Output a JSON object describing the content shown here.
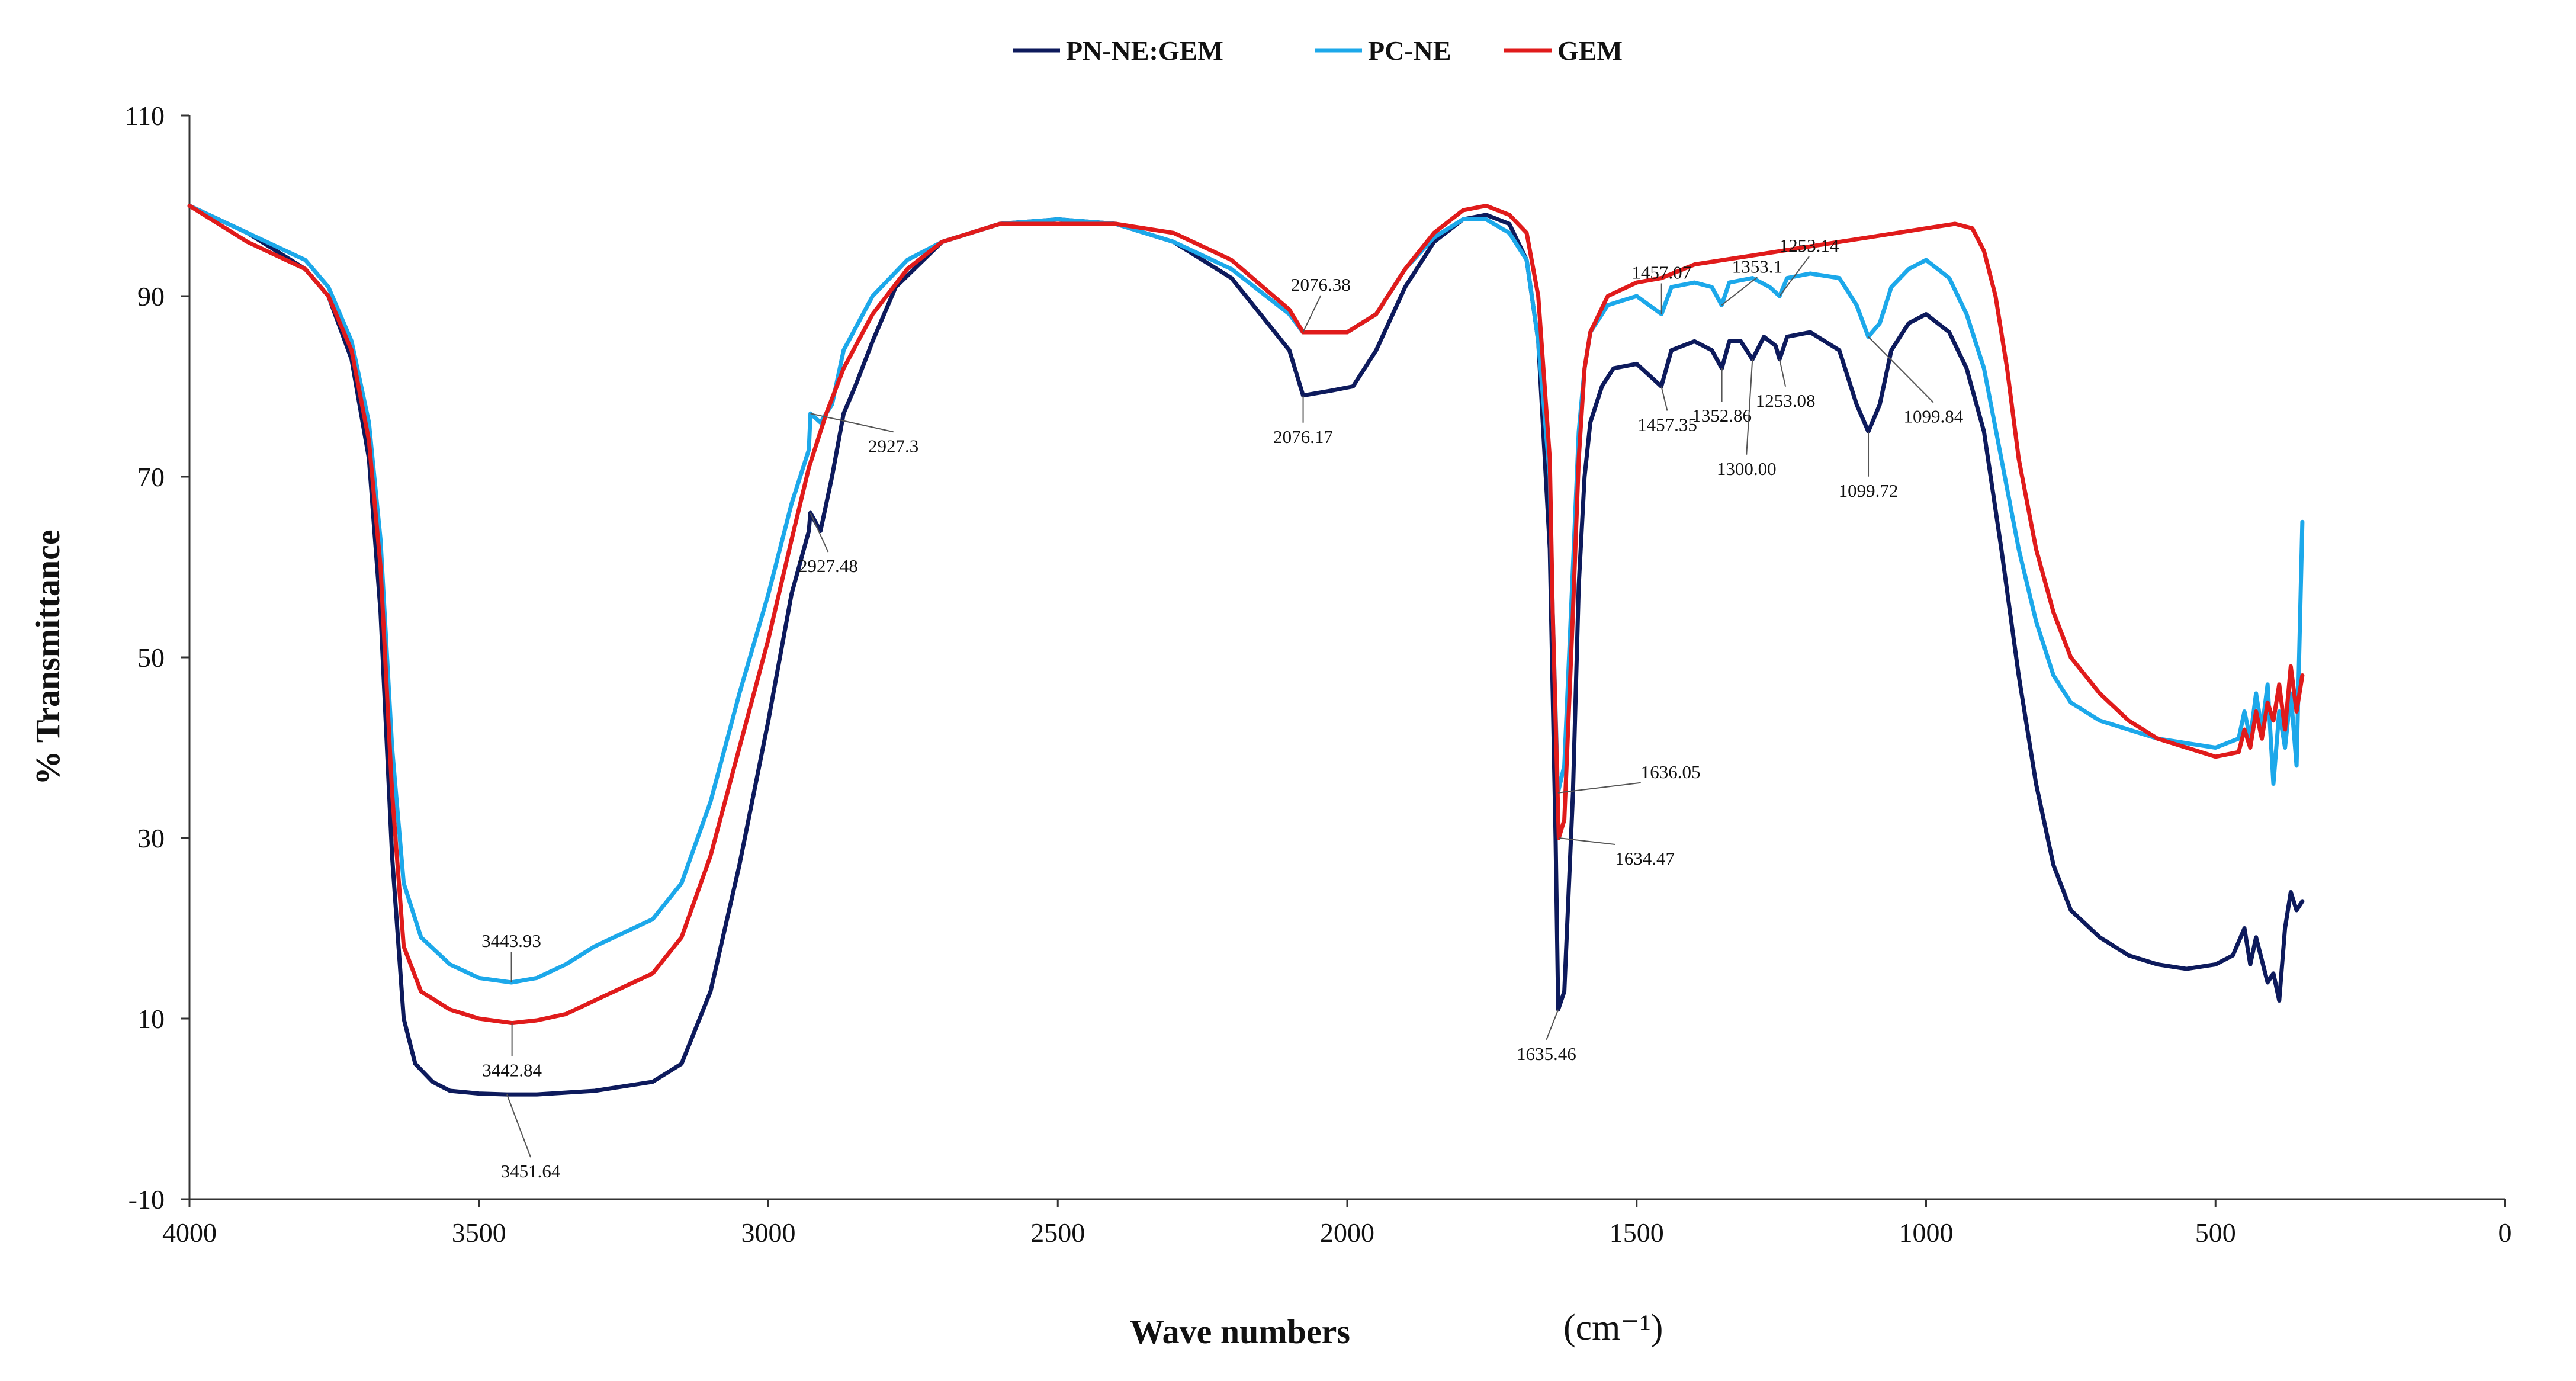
{
  "chart_data": {
    "type": "line",
    "title": "",
    "xlabel": "Wave numbers",
    "xlabel_unit": "(cm⁻¹)",
    "ylabel": "% Transmittance",
    "xlim": [
      4000,
      0
    ],
    "ylim": [
      -10,
      110
    ],
    "x_reversed": true,
    "grid": false,
    "legend_position": "top-center",
    "xticks": [
      4000,
      3500,
      3000,
      2500,
      2000,
      1500,
      1000,
      500,
      0
    ],
    "yticks": [
      -10,
      10,
      30,
      50,
      70,
      90,
      110
    ],
    "series": [
      {
        "name": "PN-NE:GEM",
        "color": "#0d1a5c",
        "points": [
          [
            4000,
            100
          ],
          [
            3900,
            97
          ],
          [
            3800,
            93
          ],
          [
            3760,
            90
          ],
          [
            3720,
            83
          ],
          [
            3690,
            72
          ],
          [
            3670,
            55
          ],
          [
            3650,
            28
          ],
          [
            3630,
            10
          ],
          [
            3610,
            5
          ],
          [
            3580,
            3
          ],
          [
            3550,
            2
          ],
          [
            3500,
            1.7
          ],
          [
            3451.64,
            1.6
          ],
          [
            3400,
            1.6
          ],
          [
            3300,
            2
          ],
          [
            3200,
            3
          ],
          [
            3150,
            5
          ],
          [
            3100,
            13
          ],
          [
            3050,
            27
          ],
          [
            3000,
            43
          ],
          [
            2960,
            57
          ],
          [
            2930,
            64
          ],
          [
            2927.48,
            66
          ],
          [
            2910,
            64
          ],
          [
            2890,
            70
          ],
          [
            2870,
            77
          ],
          [
            2850,
            80
          ],
          [
            2820,
            85
          ],
          [
            2780,
            91
          ],
          [
            2700,
            96
          ],
          [
            2600,
            98
          ],
          [
            2500,
            98.5
          ],
          [
            2400,
            98
          ],
          [
            2300,
            96
          ],
          [
            2200,
            92
          ],
          [
            2100,
            84
          ],
          [
            2076.17,
            79
          ],
          [
            2030,
            79.5
          ],
          [
            1990,
            80
          ],
          [
            1950,
            84
          ],
          [
            1900,
            91
          ],
          [
            1850,
            96
          ],
          [
            1800,
            98.5
          ],
          [
            1760,
            99
          ],
          [
            1720,
            98
          ],
          [
            1690,
            94
          ],
          [
            1670,
            85
          ],
          [
            1650,
            62
          ],
          [
            1640,
            30
          ],
          [
            1635.46,
            11
          ],
          [
            1625,
            13
          ],
          [
            1610,
            35
          ],
          [
            1600,
            58
          ],
          [
            1590,
            70
          ],
          [
            1580,
            76
          ],
          [
            1560,
            80
          ],
          [
            1540,
            82
          ],
          [
            1500,
            82.5
          ],
          [
            1457.35,
            80
          ],
          [
            1440,
            84
          ],
          [
            1400,
            85
          ],
          [
            1370,
            84
          ],
          [
            1352.86,
            82
          ],
          [
            1340,
            85
          ],
          [
            1320,
            85
          ],
          [
            1300,
            83
          ],
          [
            1280,
            85.5
          ],
          [
            1260,
            84.5
          ],
          [
            1253.08,
            83
          ],
          [
            1240,
            85.5
          ],
          [
            1200,
            86
          ],
          [
            1150,
            84
          ],
          [
            1120,
            78
          ],
          [
            1099.72,
            75
          ],
          [
            1080,
            78
          ],
          [
            1060,
            84
          ],
          [
            1030,
            87
          ],
          [
            1000,
            88
          ],
          [
            960,
            86
          ],
          [
            930,
            82
          ],
          [
            900,
            75
          ],
          [
            870,
            62
          ],
          [
            840,
            48
          ],
          [
            810,
            36
          ],
          [
            780,
            27
          ],
          [
            750,
            22
          ],
          [
            700,
            19
          ],
          [
            650,
            17
          ],
          [
            600,
            16
          ],
          [
            550,
            15.5
          ],
          [
            500,
            16
          ],
          [
            470,
            17
          ],
          [
            450,
            20
          ],
          [
            440,
            16
          ],
          [
            430,
            19
          ],
          [
            410,
            14
          ],
          [
            400,
            15
          ],
          [
            390,
            12
          ],
          [
            380,
            20
          ],
          [
            370,
            24
          ],
          [
            360,
            22
          ],
          [
            350,
            23
          ]
        ]
      },
      {
        "name": "PC-NE",
        "color": "#1ca8ea",
        "points": [
          [
            4000,
            100
          ],
          [
            3900,
            97
          ],
          [
            3800,
            94
          ],
          [
            3760,
            91
          ],
          [
            3720,
            85
          ],
          [
            3690,
            76
          ],
          [
            3670,
            63
          ],
          [
            3650,
            40
          ],
          [
            3630,
            25
          ],
          [
            3600,
            19
          ],
          [
            3550,
            16
          ],
          [
            3500,
            14.5
          ],
          [
            3443.93,
            14
          ],
          [
            3400,
            14.5
          ],
          [
            3350,
            16
          ],
          [
            3300,
            18
          ],
          [
            3200,
            21
          ],
          [
            3150,
            25
          ],
          [
            3100,
            34
          ],
          [
            3050,
            46
          ],
          [
            3000,
            57
          ],
          [
            2960,
            67
          ],
          [
            2930,
            73
          ],
          [
            2927.3,
            77
          ],
          [
            2910,
            76
          ],
          [
            2890,
            78
          ],
          [
            2870,
            84
          ],
          [
            2820,
            90
          ],
          [
            2760,
            94
          ],
          [
            2700,
            96
          ],
          [
            2600,
            98
          ],
          [
            2500,
            98.5
          ],
          [
            2400,
            98
          ],
          [
            2300,
            96
          ],
          [
            2200,
            93
          ],
          [
            2100,
            88
          ],
          [
            2076.38,
            86
          ],
          [
            2000,
            86
          ],
          [
            1950,
            88
          ],
          [
            1900,
            93
          ],
          [
            1850,
            96.5
          ],
          [
            1800,
            98.5
          ],
          [
            1760,
            98.5
          ],
          [
            1720,
            97
          ],
          [
            1690,
            94
          ],
          [
            1670,
            85
          ],
          [
            1650,
            70
          ],
          [
            1645,
            55
          ],
          [
            1636.05,
            35
          ],
          [
            1625,
            38
          ],
          [
            1610,
            60
          ],
          [
            1600,
            75
          ],
          [
            1590,
            82
          ],
          [
            1580,
            86
          ],
          [
            1550,
            89
          ],
          [
            1500,
            90
          ],
          [
            1457.07,
            88
          ],
          [
            1440,
            91
          ],
          [
            1400,
            91.5
          ],
          [
            1370,
            91
          ],
          [
            1353.1,
            89
          ],
          [
            1340,
            91.5
          ],
          [
            1300,
            92
          ],
          [
            1270,
            91
          ],
          [
            1253.14,
            90
          ],
          [
            1240,
            92
          ],
          [
            1200,
            92.5
          ],
          [
            1150,
            92
          ],
          [
            1120,
            89
          ],
          [
            1099.84,
            85.5
          ],
          [
            1080,
            87
          ],
          [
            1060,
            91
          ],
          [
            1030,
            93
          ],
          [
            1000,
            94
          ],
          [
            960,
            92
          ],
          [
            930,
            88
          ],
          [
            900,
            82
          ],
          [
            870,
            72
          ],
          [
            840,
            62
          ],
          [
            810,
            54
          ],
          [
            780,
            48
          ],
          [
            750,
            45
          ],
          [
            700,
            43
          ],
          [
            650,
            42
          ],
          [
            600,
            41
          ],
          [
            550,
            40.5
          ],
          [
            500,
            40
          ],
          [
            460,
            41
          ],
          [
            450,
            44
          ],
          [
            440,
            41
          ],
          [
            430,
            46
          ],
          [
            420,
            42
          ],
          [
            410,
            47
          ],
          [
            400,
            36
          ],
          [
            390,
            44
          ],
          [
            380,
            40
          ],
          [
            370,
            46
          ],
          [
            360,
            38
          ],
          [
            350,
            65
          ]
        ]
      },
      {
        "name": "GEM",
        "color": "#e01b1b",
        "points": [
          [
            4000,
            100
          ],
          [
            3900,
            96
          ],
          [
            3800,
            93
          ],
          [
            3760,
            90
          ],
          [
            3720,
            84
          ],
          [
            3690,
            74
          ],
          [
            3670,
            60
          ],
          [
            3650,
            35
          ],
          [
            3630,
            18
          ],
          [
            3600,
            13
          ],
          [
            3550,
            11
          ],
          [
            3500,
            10
          ],
          [
            3442.84,
            9.5
          ],
          [
            3400,
            9.8
          ],
          [
            3350,
            10.5
          ],
          [
            3300,
            12
          ],
          [
            3200,
            15
          ],
          [
            3150,
            19
          ],
          [
            3100,
            28
          ],
          [
            3050,
            40
          ],
          [
            3000,
            52
          ],
          [
            2960,
            63
          ],
          [
            2930,
            71
          ],
          [
            2900,
            77
          ],
          [
            2870,
            82
          ],
          [
            2820,
            88
          ],
          [
            2760,
            93
          ],
          [
            2700,
            96
          ],
          [
            2600,
            98
          ],
          [
            2500,
            98
          ],
          [
            2400,
            98
          ],
          [
            2300,
            97
          ],
          [
            2200,
            94
          ],
          [
            2100,
            88.5
          ],
          [
            2076.38,
            86
          ],
          [
            2000,
            86
          ],
          [
            1950,
            88
          ],
          [
            1900,
            93
          ],
          [
            1850,
            97
          ],
          [
            1800,
            99.5
          ],
          [
            1760,
            100
          ],
          [
            1720,
            99
          ],
          [
            1690,
            97
          ],
          [
            1670,
            90
          ],
          [
            1650,
            72
          ],
          [
            1645,
            55
          ],
          [
            1634.47,
            30
          ],
          [
            1625,
            32
          ],
          [
            1610,
            55
          ],
          [
            1600,
            72
          ],
          [
            1590,
            82
          ],
          [
            1580,
            86
          ],
          [
            1550,
            90
          ],
          [
            1500,
            91.5
          ],
          [
            1457,
            92
          ],
          [
            1400,
            93.5
          ],
          [
            1300,
            94.5
          ],
          [
            1200,
            95.5
          ],
          [
            1100,
            96.5
          ],
          [
            1000,
            97.5
          ],
          [
            950,
            98
          ],
          [
            920,
            97.5
          ],
          [
            900,
            95
          ],
          [
            880,
            90
          ],
          [
            860,
            82
          ],
          [
            840,
            72
          ],
          [
            810,
            62
          ],
          [
            780,
            55
          ],
          [
            750,
            50
          ],
          [
            700,
            46
          ],
          [
            650,
            43
          ],
          [
            600,
            41
          ],
          [
            550,
            40
          ],
          [
            500,
            39
          ],
          [
            460,
            39.5
          ],
          [
            450,
            42
          ],
          [
            440,
            40
          ],
          [
            430,
            44
          ],
          [
            420,
            41
          ],
          [
            410,
            45
          ],
          [
            400,
            43
          ],
          [
            390,
            47
          ],
          [
            380,
            42
          ],
          [
            370,
            49
          ],
          [
            360,
            44
          ],
          [
            350,
            48
          ]
        ]
      }
    ],
    "annotations": [
      {
        "series": 1,
        "x": 3443.93,
        "text": "3443.93"
      },
      {
        "series": 2,
        "x": 3442.84,
        "text": "3442.84"
      },
      {
        "series": 0,
        "x": 3451.64,
        "text": "3451.64"
      },
      {
        "series": 1,
        "x": 2927.3,
        "text": "2927.3"
      },
      {
        "series": 0,
        "x": 2927.48,
        "text": "2927.48"
      },
      {
        "series": 2,
        "x": 2076.38,
        "text": "2076.38"
      },
      {
        "series": 0,
        "x": 2076.17,
        "text": "2076.17"
      },
      {
        "series": 1,
        "x": 1636.05,
        "text": "1636.05"
      },
      {
        "series": 2,
        "x": 1634.47,
        "text": "1634.47"
      },
      {
        "series": 0,
        "x": 1635.46,
        "text": "1635.46"
      },
      {
        "series": 1,
        "x": 1457.07,
        "text": "1457.07"
      },
      {
        "series": 1,
        "x": 1353.1,
        "text": "1353.1"
      },
      {
        "series": 1,
        "x": 1253.14,
        "text": "1253.14"
      },
      {
        "series": 0,
        "x": 1457.35,
        "text": "1457.35"
      },
      {
        "series": 0,
        "x": 1352.86,
        "text": "1352.86"
      },
      {
        "series": 0,
        "x": 1253.08,
        "text": "1253.08"
      },
      {
        "series": 0,
        "x": 1300.0,
        "text": "1300.00"
      },
      {
        "series": 0,
        "x": 1099.72,
        "text": "1099.72"
      },
      {
        "series": 1,
        "x": 1099.84,
        "text": "1099.84"
      }
    ]
  }
}
